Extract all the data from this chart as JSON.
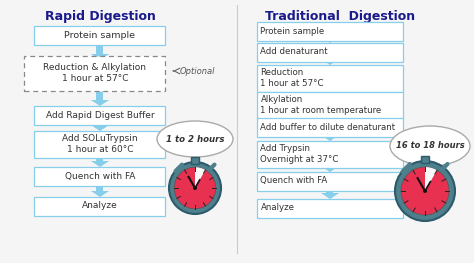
{
  "title_left": "Rapid Digestion",
  "title_right": "Traditional  Digestion",
  "bg_color": "#f5f5f5",
  "title_color": "#1a1a8c",
  "box_bg": "#ffffff",
  "box_border": "#87ceeb",
  "arrow_color": "#87ceeb",
  "left_time": "1 to 2 hours",
  "right_time": "16 to 18 hours",
  "optional_label": "Optional",
  "text_color": "#333333",
  "left_dashed": "Reduction & Alkylation\n1 hour at 57°C"
}
